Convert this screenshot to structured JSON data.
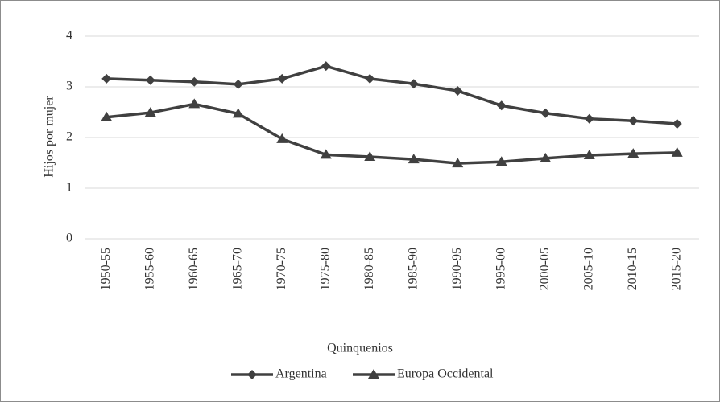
{
  "chart_data": {
    "type": "line",
    "x_label": "Quinquenios",
    "y_label": "Hijos por mujer",
    "categories": [
      "1950-55",
      "1955-60",
      "1960-65",
      "1965-70",
      "1970-75",
      "1975-80",
      "1980-85",
      "1985-90",
      "1990-95",
      "1995-00",
      "2000-05",
      "2005-10",
      "2010-15",
      "2015-20"
    ],
    "series": [
      {
        "name": "Argentina",
        "color": "#404040",
        "marker": "diamond",
        "values": [
          3.16,
          3.13,
          3.1,
          3.05,
          3.16,
          3.41,
          3.16,
          3.06,
          2.92,
          2.63,
          2.48,
          2.37,
          2.33,
          2.27
        ]
      },
      {
        "name": "Europa Occidental",
        "color": "#404040",
        "marker": "triangle",
        "values": [
          2.4,
          2.49,
          2.66,
          2.47,
          1.97,
          1.66,
          1.62,
          1.57,
          1.49,
          1.52,
          1.59,
          1.65,
          1.68,
          1.7
        ]
      }
    ],
    "ylim": [
      0,
      4
    ],
    "yticks": [
      0,
      1,
      2,
      3,
      4
    ],
    "grid": true,
    "legend": "bottom"
  }
}
